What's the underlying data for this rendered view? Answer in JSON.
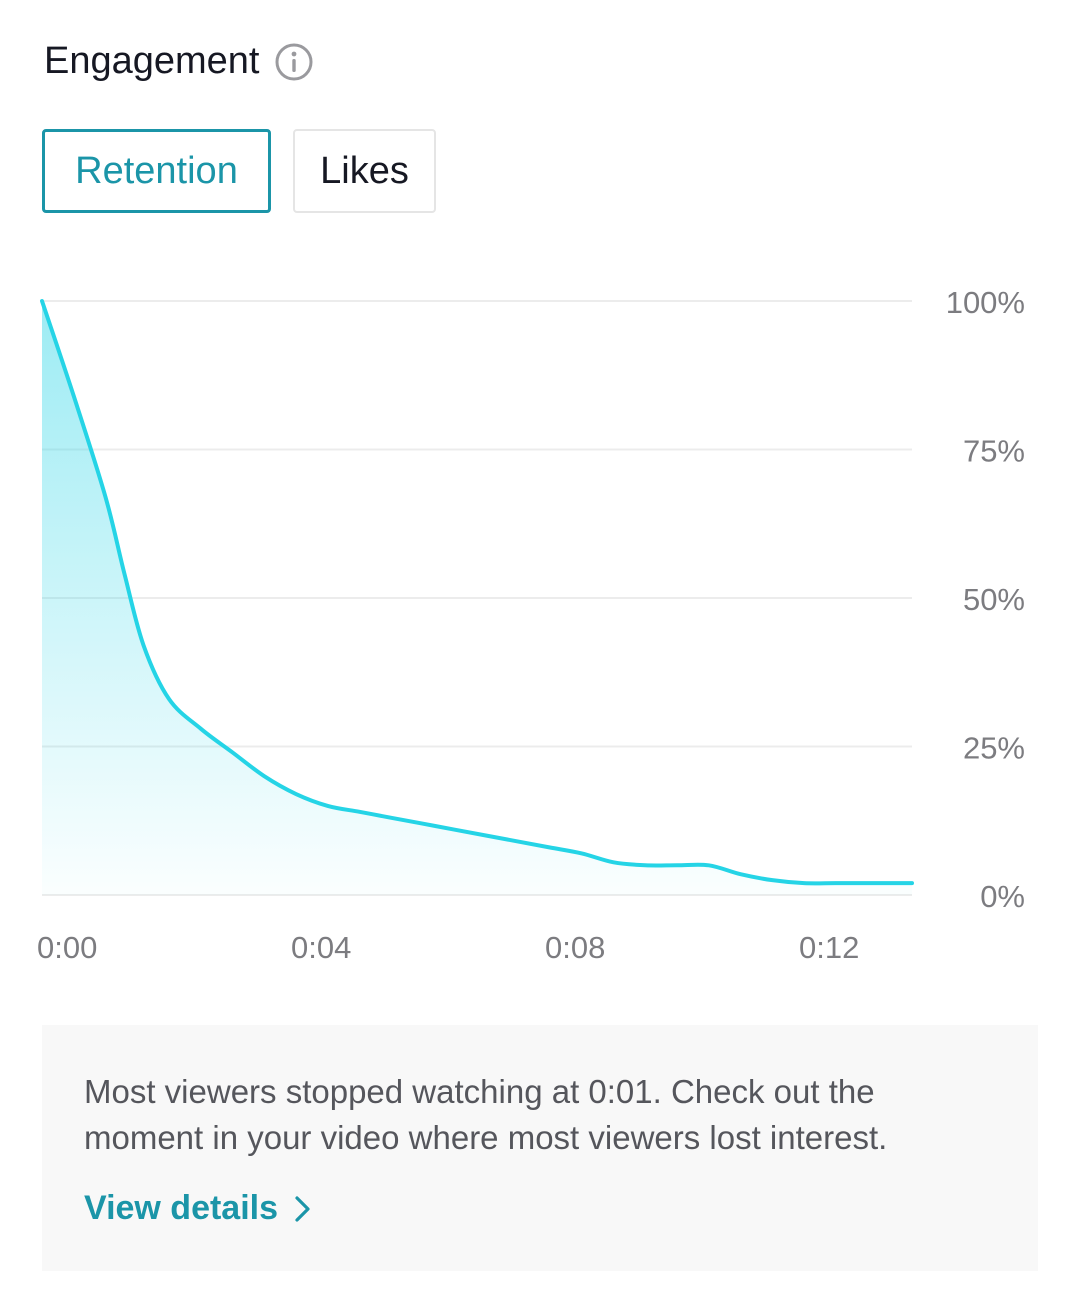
{
  "header": {
    "title": "Engagement",
    "info_icon": "info-icon"
  },
  "tabs": [
    {
      "label": "Retention",
      "active": true
    },
    {
      "label": "Likes",
      "active": false
    }
  ],
  "colors": {
    "accent": "#1b95a8",
    "line": "#25d4e6",
    "grid": "#ececec",
    "tick": "#7c7c80"
  },
  "chart_data": {
    "type": "area",
    "title": "",
    "xlabel": "",
    "ylabel": "",
    "x_unit": "seconds",
    "x": [
      0,
      0.5,
      1,
      1.3,
      1.6,
      2,
      2.5,
      3,
      3.5,
      4,
      4.5,
      5,
      5.5,
      6,
      6.5,
      7,
      7.5,
      8,
      8.5,
      9,
      9.5,
      10,
      10.5,
      11,
      11.5,
      12,
      12.5,
      13,
      13.7
    ],
    "y": [
      100,
      84,
      67,
      54,
      42,
      33,
      28,
      24,
      20,
      17,
      15,
      14,
      13,
      12,
      11,
      10,
      9,
      8,
      7,
      5.5,
      5,
      5,
      5,
      3.5,
      2.5,
      2,
      2,
      2,
      2
    ],
    "xlim": [
      0,
      13.7
    ],
    "ylim": [
      0,
      100
    ],
    "x_ticks": [
      {
        "value": 0,
        "label": "0:00"
      },
      {
        "value": 4,
        "label": "0:04"
      },
      {
        "value": 8,
        "label": "0:08"
      },
      {
        "value": 12,
        "label": "0:12"
      }
    ],
    "y_ticks": [
      {
        "value": 100,
        "label": "100%"
      },
      {
        "value": 75,
        "label": "75%"
      },
      {
        "value": 50,
        "label": "50%"
      },
      {
        "value": 25,
        "label": "25%"
      },
      {
        "value": 0,
        "label": "0%"
      }
    ],
    "grid": true,
    "y_axis_position": "right"
  },
  "insight": {
    "text": "Most viewers stopped watching at 0:01. Check out the moment in your video where most viewers lost interest.",
    "link_label": "View details",
    "link_icon": "chevron-right-icon"
  }
}
